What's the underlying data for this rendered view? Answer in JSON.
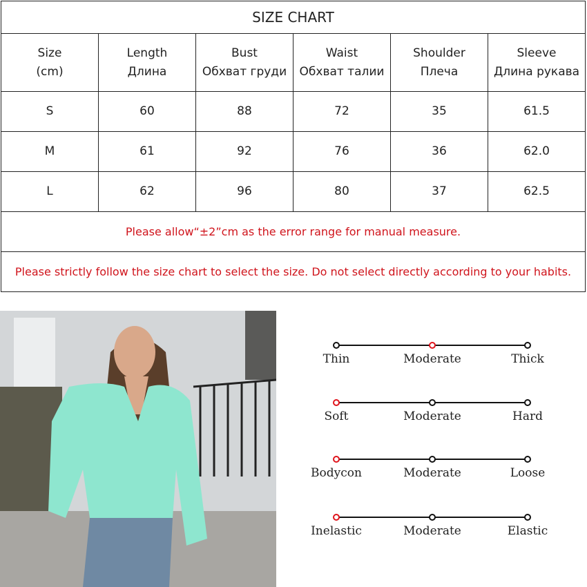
{
  "title": "SIZE CHART",
  "headers": [
    {
      "en": "Size",
      "ru": "(cm)"
    },
    {
      "en": "Length",
      "ru": "Длина"
    },
    {
      "en": "Bust",
      "ru": "Обхват груди"
    },
    {
      "en": "Waist",
      "ru": "Обхват талии"
    },
    {
      "en": "Shoulder",
      "ru": "Плеча"
    },
    {
      "en": "Sleeve",
      "ru": "Длина рукава"
    }
  ],
  "rows": [
    [
      "S",
      "60",
      "88",
      "72",
      "35",
      "61.5"
    ],
    [
      "M",
      "61",
      "92",
      "76",
      "36",
      "62.0"
    ],
    [
      "L",
      "62",
      "96",
      "80",
      "37",
      "62.5"
    ]
  ],
  "notes": [
    "Please allow“±2”cm as the error range for manual measure.",
    "Please strictly follow the size chart  to select the size. Do not select directly according to your habits."
  ],
  "accent_color": "#e0141c",
  "scales": [
    {
      "labels": [
        "Thin",
        "Moderate",
        "Thick"
      ],
      "selected": 1
    },
    {
      "labels": [
        "Soft",
        "Moderate",
        "Hard"
      ],
      "selected": 0
    },
    {
      "labels": [
        "Bodycon",
        "Moderate",
        "Loose"
      ],
      "selected": 0
    },
    {
      "labels": [
        "Inelastic",
        "Moderate",
        "Elastic"
      ],
      "selected": 0
    }
  ]
}
